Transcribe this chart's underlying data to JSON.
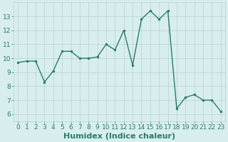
{
  "x": [
    0,
    1,
    2,
    3,
    4,
    5,
    6,
    7,
    8,
    9,
    10,
    11,
    12,
    13,
    14,
    15,
    16,
    17,
    18,
    19,
    20,
    21,
    22,
    23
  ],
  "y": [
    9.7,
    9.8,
    9.8,
    8.3,
    9.1,
    10.5,
    10.5,
    10.0,
    10.0,
    10.1,
    11.0,
    10.6,
    12.0,
    9.5,
    12.8,
    13.4,
    12.8,
    13.4,
    6.4,
    7.2,
    7.4,
    7.0,
    7.0,
    6.2
  ],
  "line_color": "#2a7a6f",
  "marker_color": "#2a7a6f",
  "bg_color": "#d8eeee",
  "grid_color": "#b8d0d0",
  "xlabel": "Humidex (Indice chaleur)",
  "ylim": [
    5.5,
    14.0
  ],
  "xlim": [
    -0.5,
    23.5
  ],
  "yticks": [
    6,
    7,
    8,
    9,
    10,
    11,
    12,
    13
  ],
  "xticks": [
    0,
    1,
    2,
    3,
    4,
    5,
    6,
    7,
    8,
    9,
    10,
    11,
    12,
    13,
    14,
    15,
    16,
    17,
    18,
    19,
    20,
    21,
    22,
    23
  ],
  "xtick_labels": [
    "0",
    "1",
    "2",
    "3",
    "4",
    "5",
    "6",
    "7",
    "8",
    "9",
    "10",
    "11",
    "12",
    "13",
    "14",
    "15",
    "16",
    "17",
    "18",
    "19",
    "20",
    "21",
    "22",
    "23"
  ],
  "tick_color": "#2a7a6f",
  "label_fontsize": 8,
  "tick_fontsize": 6.5,
  "label_fontweight": "bold"
}
